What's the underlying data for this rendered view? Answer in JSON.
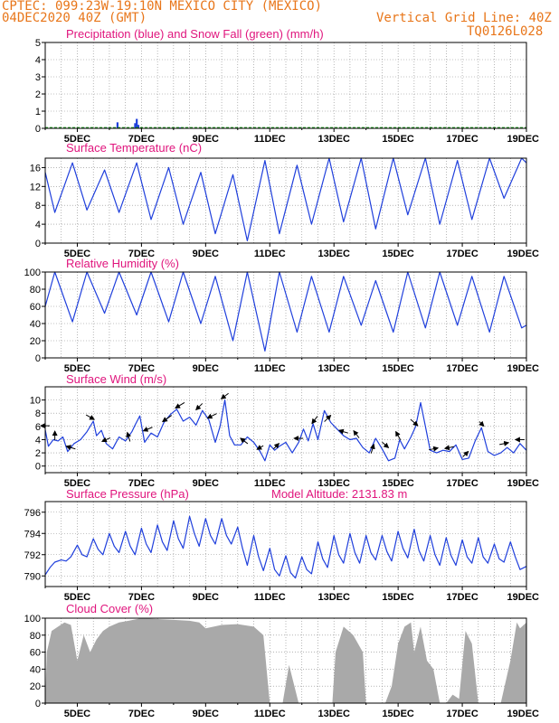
{
  "header": {
    "line1": "CPTEC:   099:23W-19:10N   MEXICO CITY (MEXICO)",
    "line2": "04DEC2020 40Z (GMT)",
    "grid_note": "Vertical Grid Line: 40Z",
    "code": "TQ0126L028",
    "text_color": "#e8761a"
  },
  "colors": {
    "title": "#e0157d",
    "line": "#1f3fdc",
    "snow": "#1a9a1a",
    "cloud": "#a9a9a9",
    "wind_arrow": "#000000",
    "grid": "#888888"
  },
  "x_ticks": [
    "5DEC",
    "7DEC",
    "9DEC",
    "11DEC",
    "13DEC",
    "15DEC",
    "17DEC",
    "19DEC"
  ],
  "model_altitude": "Model Altitude: 2131.83 m",
  "chart_data": [
    {
      "id": "precip",
      "type": "bar",
      "title": "Precipitation (blue) and Snow Fall (green) (mm/h)",
      "ylim": [
        0,
        5
      ],
      "yticks": [
        "0",
        "1",
        "2",
        "3",
        "4",
        "5"
      ],
      "x_range_days": [
        4.0,
        19.0
      ],
      "series": [
        {
          "name": "Precipitation",
          "color": "#1f3fdc",
          "x": [
            4.3,
            5.2,
            5.9,
            6.25,
            6.8,
            6.85,
            6.9,
            8.2
          ],
          "y": [
            0.05,
            0.04,
            0.06,
            0.35,
            0.3,
            0.55,
            0.2,
            0.05
          ]
        },
        {
          "name": "Snow Fall",
          "color": "#1a9a1a",
          "baseline": true,
          "x_span": [
            4.0,
            19.0
          ],
          "y": 0.03
        }
      ]
    },
    {
      "id": "temp",
      "type": "line",
      "title": "Surface Temperature (nC)",
      "ylim": [
        0,
        18
      ],
      "yticks": [
        "0",
        "4",
        "8",
        "12",
        "16"
      ],
      "ytick_values": [
        0,
        4,
        8,
        12,
        16
      ],
      "x_range_days": [
        4.0,
        19.0
      ],
      "mode": "diurnal",
      "max_values": [
        17,
        15.5,
        17,
        16,
        15,
        14.5,
        17.5,
        16.5,
        18,
        18,
        18,
        18,
        17.5,
        18,
        18
      ],
      "min_values": [
        6.5,
        7,
        6.5,
        5,
        4,
        2,
        0.5,
        2,
        4,
        4.5,
        3,
        6,
        4,
        5,
        9.5
      ]
    },
    {
      "id": "rh",
      "type": "line",
      "title": "Relative Humidity (%)",
      "ylim": [
        0,
        100
      ],
      "yticks": [
        "0",
        "20",
        "40",
        "60",
        "80",
        "100"
      ],
      "ytick_values": [
        0,
        20,
        40,
        60,
        80,
        100
      ],
      "x_range_days": [
        4.0,
        19.0
      ],
      "mode": "diurnal_inverse",
      "max_values": [
        100,
        100,
        100,
        100,
        100,
        95,
        100,
        100,
        95,
        95,
        90,
        100,
        100,
        95,
        95
      ],
      "min_values": [
        42,
        52,
        50,
        42,
        40,
        20,
        8,
        30,
        30,
        38,
        30,
        35,
        38,
        30,
        35
      ]
    },
    {
      "id": "wind",
      "type": "line",
      "title": "Surface Wind (m/s)",
      "ylim": [
        -1,
        12
      ],
      "yticks": [
        "0",
        "2",
        "4",
        "6",
        "8",
        "10"
      ],
      "ytick_values": [
        0,
        2,
        4,
        6,
        8,
        10
      ],
      "x_range_days": [
        4.0,
        19.0
      ],
      "x": [
        4.0,
        4.1,
        4.25,
        4.4,
        4.55,
        4.7,
        4.9,
        5.1,
        5.3,
        5.5,
        5.6,
        5.75,
        5.9,
        6.1,
        6.3,
        6.5,
        6.7,
        6.8,
        6.95,
        7.1,
        7.3,
        7.5,
        7.7,
        7.9,
        8.1,
        8.3,
        8.5,
        8.7,
        8.9,
        9.1,
        9.3,
        9.45,
        9.6,
        9.75,
        9.9,
        10.1,
        10.3,
        10.5,
        10.7,
        10.85,
        11.0,
        11.15,
        11.3,
        11.5,
        11.7,
        11.9,
        12.05,
        12.2,
        12.35,
        12.5,
        12.7,
        12.9,
        13.1,
        13.3,
        13.5,
        13.7,
        13.9,
        14.1,
        14.3,
        14.5,
        14.7,
        14.9,
        15.05,
        15.2,
        15.4,
        15.55,
        15.7,
        15.85,
        16.0,
        16.2,
        16.4,
        16.6,
        16.8,
        17.0,
        17.2,
        17.4,
        17.6,
        17.8,
        18.0,
        18.2,
        18.4,
        18.6,
        18.8,
        19.0
      ],
      "y": [
        5.5,
        3.0,
        4.0,
        3.8,
        4.4,
        2.2,
        3.4,
        4.0,
        5.2,
        6.8,
        4.6,
        5.4,
        3.4,
        2.6,
        4.4,
        3.8,
        5.2,
        6.2,
        7.6,
        3.6,
        5.0,
        4.4,
        6.6,
        7.8,
        8.6,
        6.8,
        7.4,
        6.2,
        8.4,
        7.0,
        3.6,
        6.0,
        10.0,
        4.6,
        3.2,
        3.2,
        4.4,
        3.6,
        2.2,
        0.8,
        3.2,
        2.4,
        3.0,
        3.6,
        2.0,
        3.6,
        5.6,
        3.8,
        6.4,
        4.0,
        8.4,
        6.6,
        5.6,
        4.6,
        4.0,
        4.2,
        2.8,
        2.0,
        4.2,
        2.6,
        0.8,
        1.2,
        4.0,
        2.6,
        4.4,
        6.0,
        9.6,
        6.0,
        2.4,
        2.0,
        2.4,
        2.2,
        3.2,
        1.0,
        1.2,
        3.8,
        5.8,
        2.2,
        1.6,
        2.0,
        2.8,
        2.0,
        3.4,
        2.4
      ],
      "arrows": [
        {
          "x": 4.0,
          "dir": [
            -1,
            0
          ]
        },
        {
          "x": 4.3,
          "dir": [
            0,
            1
          ]
        },
        {
          "x": 4.8,
          "dir": [
            -1,
            0.3
          ]
        },
        {
          "x": 5.4,
          "dir": [
            0.9,
            -0.5
          ]
        },
        {
          "x": 5.9,
          "dir": [
            -0.9,
            -0.4
          ]
        },
        {
          "x": 6.6,
          "dir": [
            -0.3,
            1
          ]
        },
        {
          "x": 7.2,
          "dir": [
            -1,
            -0.4
          ]
        },
        {
          "x": 7.8,
          "dir": [
            -1,
            -0.7
          ]
        },
        {
          "x": 8.2,
          "dir": [
            -1,
            -0.6
          ]
        },
        {
          "x": 8.8,
          "dir": [
            -0.7,
            -0.7
          ]
        },
        {
          "x": 9.2,
          "dir": [
            -1,
            -0.5
          ]
        },
        {
          "x": 9.6,
          "dir": [
            -0.8,
            -0.6
          ]
        },
        {
          "x": 10.2,
          "dir": [
            -0.8,
            0.6
          ]
        },
        {
          "x": 10.7,
          "dir": [
            -0.7,
            -0.4
          ]
        },
        {
          "x": 11.2,
          "dir": [
            0.6,
            0.6
          ]
        },
        {
          "x": 11.9,
          "dir": [
            -1,
            0
          ]
        },
        {
          "x": 12.4,
          "dir": [
            -0.6,
            -0.8
          ]
        },
        {
          "x": 12.8,
          "dir": [
            0.7,
            0.7
          ]
        },
        {
          "x": 13.3,
          "dir": [
            -1,
            0.3
          ]
        },
        {
          "x": 13.7,
          "dir": [
            -0.6,
            0.8
          ]
        },
        {
          "x": 14.2,
          "dir": [
            0.3,
            1
          ]
        },
        {
          "x": 14.6,
          "dir": [
            0.7,
            -0.6
          ]
        },
        {
          "x": 15.0,
          "dir": [
            -0.5,
            0.9
          ]
        },
        {
          "x": 15.5,
          "dir": [
            0.8,
            -0.7
          ]
        },
        {
          "x": 16.1,
          "dir": [
            1,
            0.2
          ]
        },
        {
          "x": 16.6,
          "dir": [
            -1,
            -0.2
          ]
        },
        {
          "x": 17.1,
          "dir": [
            0.6,
            0.6
          ]
        },
        {
          "x": 17.6,
          "dir": [
            0.5,
            -0.5
          ]
        },
        {
          "x": 18.3,
          "dir": [
            1,
            0.2
          ]
        },
        {
          "x": 18.8,
          "dir": [
            -1,
            0
          ]
        }
      ]
    },
    {
      "id": "pressure",
      "type": "line",
      "title": "Surface Pressure (hPa)",
      "ylim": [
        789,
        797
      ],
      "yticks": [
        "790",
        "792",
        "794",
        "796"
      ],
      "ytick_values": [
        790,
        792,
        794,
        796
      ],
      "x_range_days": [
        4.0,
        19.0
      ],
      "x": [
        4.0,
        4.15,
        4.3,
        4.5,
        4.65,
        4.8,
        5.0,
        5.15,
        5.3,
        5.5,
        5.65,
        5.8,
        6.0,
        6.15,
        6.3,
        6.5,
        6.65,
        6.8,
        7.0,
        7.15,
        7.3,
        7.5,
        7.65,
        7.8,
        8.0,
        8.15,
        8.3,
        8.5,
        8.65,
        8.8,
        9.0,
        9.15,
        9.3,
        9.5,
        9.65,
        9.8,
        10.0,
        10.15,
        10.3,
        10.5,
        10.65,
        10.8,
        11.0,
        11.15,
        11.3,
        11.5,
        11.65,
        11.8,
        12.0,
        12.15,
        12.3,
        12.5,
        12.65,
        12.8,
        13.0,
        13.15,
        13.3,
        13.5,
        13.65,
        13.8,
        14.0,
        14.15,
        14.3,
        14.5,
        14.65,
        14.8,
        15.0,
        15.15,
        15.3,
        15.5,
        15.65,
        15.8,
        16.0,
        16.15,
        16.3,
        16.5,
        16.65,
        16.8,
        17.0,
        17.15,
        17.3,
        17.5,
        17.65,
        17.8,
        18.0,
        18.15,
        18.3,
        18.5,
        18.65,
        18.8,
        19.0
      ],
      "y": [
        790.1,
        790.8,
        791.3,
        791.5,
        791.4,
        791.8,
        792.9,
        792.0,
        791.8,
        793.5,
        792.5,
        792.0,
        794.0,
        792.8,
        792.2,
        794.2,
        792.8,
        792.0,
        794.5,
        793.0,
        792.2,
        794.8,
        793.2,
        792.4,
        795.2,
        793.5,
        792.6,
        795.6,
        794.0,
        792.8,
        795.4,
        793.8,
        793.0,
        795.4,
        793.8,
        793.0,
        794.6,
        792.6,
        791.0,
        793.8,
        791.8,
        790.5,
        792.6,
        790.6,
        790.0,
        791.9,
        790.3,
        789.8,
        791.8,
        790.6,
        790.2,
        793.2,
        791.6,
        790.8,
        793.8,
        792.0,
        791.2,
        794.0,
        792.2,
        791.2,
        793.8,
        792.2,
        791.5,
        793.8,
        792.3,
        791.4,
        794.2,
        792.6,
        791.7,
        794.4,
        792.4,
        791.4,
        793.8,
        792.0,
        791.0,
        793.6,
        791.9,
        791.0,
        793.4,
        791.8,
        791.2,
        793.6,
        791.8,
        791.2,
        793.0,
        791.6,
        791.3,
        793.2,
        791.8,
        790.6,
        790.9
      ]
    },
    {
      "id": "cloud",
      "type": "area",
      "title": "Cloud Cover (%)",
      "ylim": [
        0,
        100
      ],
      "yticks": [
        "0",
        "20",
        "40",
        "60",
        "80",
        "100"
      ],
      "ytick_values": [
        0,
        20,
        40,
        60,
        80,
        100
      ],
      "x_range_days": [
        4.0,
        19.0
      ],
      "x": [
        4.0,
        4.05,
        4.2,
        4.4,
        4.6,
        4.8,
        5.0,
        5.2,
        5.4,
        5.6,
        5.8,
        6.0,
        6.3,
        6.6,
        7.0,
        7.5,
        8.0,
        8.5,
        8.8,
        9.0,
        9.5,
        10.0,
        10.5,
        10.8,
        10.9,
        11.0,
        11.4,
        11.6,
        11.9,
        12.0,
        12.3,
        12.6,
        12.8,
        12.95,
        13.05,
        13.3,
        13.6,
        13.9,
        14.0,
        14.2,
        14.4,
        14.6,
        14.8,
        15.0,
        15.2,
        15.4,
        15.5,
        15.7,
        15.9,
        16.1,
        16.3,
        16.5,
        16.7,
        16.9,
        17.1,
        17.3,
        17.5,
        17.8,
        18.0,
        18.2,
        18.5,
        18.7,
        18.8,
        19.0
      ],
      "y": [
        0,
        60,
        85,
        90,
        95,
        92,
        50,
        80,
        60,
        75,
        85,
        90,
        95,
        97,
        100,
        99,
        98,
        97,
        95,
        88,
        92,
        93,
        90,
        80,
        40,
        0,
        0,
        45,
        0,
        0,
        0,
        0,
        0,
        0,
        60,
        90,
        80,
        60,
        0,
        0,
        0,
        0,
        20,
        70,
        90,
        95,
        60,
        90,
        50,
        40,
        0,
        0,
        10,
        5,
        85,
        70,
        0,
        0,
        0,
        0,
        50,
        95,
        88,
        95
      ]
    }
  ]
}
